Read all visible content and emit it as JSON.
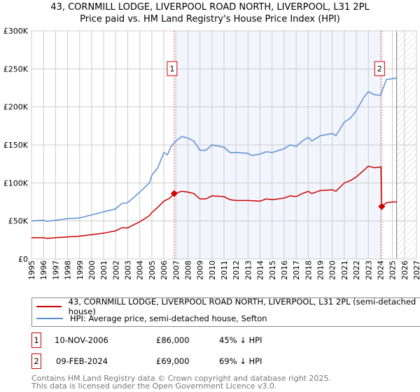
{
  "title": "43, CORNMILL LODGE, LIVERPOOL ROAD NORTH, LIVERPOOL, L31 2PL",
  "subtitle": "Price paid vs. HM Land Registry's House Price Index (HPI)",
  "chart_data": {
    "type": "line",
    "xlim": [
      1995,
      2027
    ],
    "ylim": [
      0,
      300000
    ],
    "x_ticks": [
      "1995",
      "1996",
      "1997",
      "1998",
      "1999",
      "2000",
      "2001",
      "2002",
      "2003",
      "2004",
      "2005",
      "2006",
      "2007",
      "2008",
      "2009",
      "2010",
      "2011",
      "2012",
      "2013",
      "2014",
      "2015",
      "2016",
      "2017",
      "2018",
      "2019",
      "2020",
      "2021",
      "2022",
      "2023",
      "2024",
      "2025",
      "2026",
      "2027"
    ],
    "y_ticks": [
      {
        "v": 0,
        "label": "£0"
      },
      {
        "v": 50000,
        "label": "£50K"
      },
      {
        "v": 100000,
        "label": "£100K"
      },
      {
        "v": 150000,
        "label": "£150K"
      },
      {
        "v": 200000,
        "label": "£200K"
      },
      {
        "v": 250000,
        "label": "£250K"
      },
      {
        "v": 300000,
        "label": "£300K"
      }
    ],
    "grid": true,
    "shaded_between_sales": [
      2006.86,
      2024.11
    ],
    "forecast_hatch_from": 2025.35,
    "series": [
      {
        "name": "43, CORNMILL LODGE, LIVERPOOL ROAD NORTH, LIVERPOOL, L31 2PL (semi-detached house)",
        "color": "#cc0000",
        "points": [
          [
            1995,
            28000
          ],
          [
            1996,
            28000
          ],
          [
            1996.3,
            27000
          ],
          [
            1997,
            28000
          ],
          [
            1998,
            29000
          ],
          [
            1999,
            30000
          ],
          [
            2000,
            32000
          ],
          [
            2001,
            34000
          ],
          [
            2002,
            37000
          ],
          [
            2002.5,
            41000
          ],
          [
            2003,
            41000
          ],
          [
            2004,
            49000
          ],
          [
            2004.8,
            57000
          ],
          [
            2005,
            61000
          ],
          [
            2005.5,
            68000
          ],
          [
            2006,
            76000
          ],
          [
            2006.5,
            80000
          ],
          [
            2006.86,
            86000
          ],
          [
            2007.5,
            89000
          ],
          [
            2008,
            88000
          ],
          [
            2008.5,
            86000
          ],
          [
            2009,
            79000
          ],
          [
            2009.5,
            79000
          ],
          [
            2010,
            83000
          ],
          [
            2011,
            82000
          ],
          [
            2011.5,
            78000
          ],
          [
            2012,
            77000
          ],
          [
            2013,
            77000
          ],
          [
            2014,
            76000
          ],
          [
            2014.5,
            79000
          ],
          [
            2015,
            78000
          ],
          [
            2016,
            80000
          ],
          [
            2016.5,
            83000
          ],
          [
            2017,
            82000
          ],
          [
            2017.5,
            86000
          ],
          [
            2018,
            89000
          ],
          [
            2018.3,
            86000
          ],
          [
            2019,
            90000
          ],
          [
            2020,
            91000
          ],
          [
            2020.3,
            89000
          ],
          [
            2021,
            100000
          ],
          [
            2021.5,
            103000
          ],
          [
            2022,
            108000
          ],
          [
            2022.5,
            115000
          ],
          [
            2023,
            122000
          ],
          [
            2023.5,
            120000
          ],
          [
            2024.05,
            121000
          ],
          [
            2024.11,
            69000
          ],
          [
            2024.5,
            74000
          ],
          [
            2025,
            75000
          ],
          [
            2025.35,
            75000
          ]
        ]
      },
      {
        "name": "HPI: Average price, semi-detached house, Sefton",
        "color": "#5b8fd4",
        "points": [
          [
            1995,
            50000
          ],
          [
            1996,
            51000
          ],
          [
            1996.3,
            49500
          ],
          [
            1997,
            51000
          ],
          [
            1998,
            53000
          ],
          [
            1999,
            54000
          ],
          [
            2000,
            58000
          ],
          [
            2000.5,
            60000
          ],
          [
            2001,
            62000
          ],
          [
            2002,
            66000
          ],
          [
            2002.5,
            73000
          ],
          [
            2003,
            74000
          ],
          [
            2004,
            88000
          ],
          [
            2004.8,
            100000
          ],
          [
            2005,
            110000
          ],
          [
            2005.5,
            120000
          ],
          [
            2006,
            140000
          ],
          [
            2006.3,
            137000
          ],
          [
            2006.6,
            148000
          ],
          [
            2007,
            155000
          ],
          [
            2007.5,
            161000
          ],
          [
            2008,
            159000
          ],
          [
            2008.5,
            155000
          ],
          [
            2009,
            143000
          ],
          [
            2009.5,
            143000
          ],
          [
            2010,
            150000
          ],
          [
            2011,
            147000
          ],
          [
            2011.5,
            140000
          ],
          [
            2012,
            140000
          ],
          [
            2013,
            139000
          ],
          [
            2013.3,
            136000
          ],
          [
            2014,
            138000
          ],
          [
            2014.5,
            141000
          ],
          [
            2015,
            140000
          ],
          [
            2016,
            145000
          ],
          [
            2016.5,
            150000
          ],
          [
            2017,
            148000
          ],
          [
            2017.5,
            155000
          ],
          [
            2018,
            160000
          ],
          [
            2018.3,
            155000
          ],
          [
            2019,
            162000
          ],
          [
            2020,
            165000
          ],
          [
            2020.3,
            162000
          ],
          [
            2021,
            180000
          ],
          [
            2021.5,
            185000
          ],
          [
            2022,
            195000
          ],
          [
            2022.6,
            212000
          ],
          [
            2023,
            220000
          ],
          [
            2023.5,
            216000
          ],
          [
            2024,
            215000
          ],
          [
            2024.5,
            236000
          ],
          [
            2025,
            237000
          ],
          [
            2025.35,
            238000
          ]
        ]
      }
    ],
    "sales": [
      {
        "id": "1",
        "x": 2006.86,
        "y": 86000
      },
      {
        "id": "2",
        "x": 2024.11,
        "y": 69000
      }
    ]
  },
  "legend": {
    "red": "43, CORNMILL LODGE, LIVERPOOL ROAD NORTH, LIVERPOOL, L31 2PL (semi-detached house)",
    "blue": "HPI: Average price, semi-detached house, Sefton"
  },
  "transactions": [
    {
      "id": "1",
      "date": "10-NOV-2006",
      "price": "£86,000",
      "hpi": "45% ↓ HPI"
    },
    {
      "id": "2",
      "date": "09-FEB-2024",
      "price": "£69,000",
      "hpi": "69% ↓ HPI"
    }
  ],
  "footer": [
    "Contains HM Land Registry data © Crown copyright and database right 2025.",
    "This data is licensed under the Open Government Licence v3.0."
  ]
}
